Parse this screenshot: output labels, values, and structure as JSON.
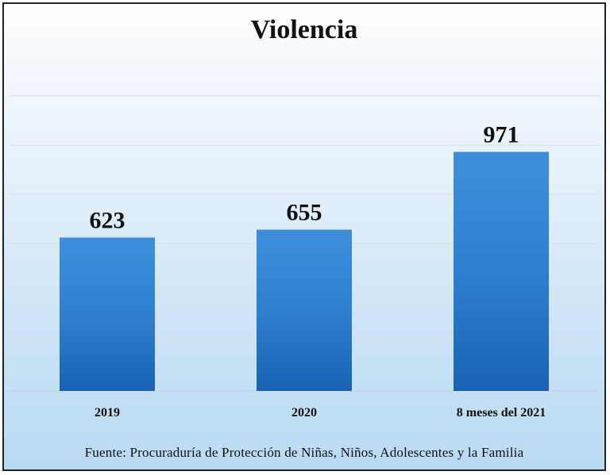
{
  "chart_data": {
    "type": "bar",
    "title": "Violencia",
    "categories": [
      "2019",
      "2020",
      "8 meses del 2021"
    ],
    "values": [
      623,
      655,
      971
    ],
    "data_labels": [
      "623",
      "655",
      "971"
    ],
    "ylim": [
      0,
      1200
    ],
    "grid": true,
    "bar_color": "#2f7fd0",
    "bar_color_light": "#3e8fdb",
    "bar_color_dark": "#1a62b3"
  },
  "source": "Fuente: Procuraduría de Protección de Niñas, Niños, Adolescentes  y la Familia"
}
